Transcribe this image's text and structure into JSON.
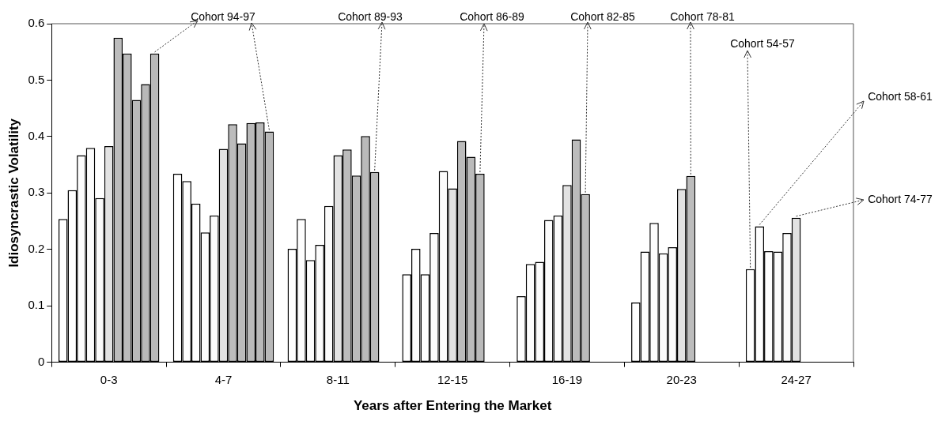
{
  "chart_data": {
    "type": "bar",
    "xlabel": "Years after Entering the Market",
    "ylabel": "Idiosyncrastic Volatility",
    "categories": [
      "0-3",
      "4-7",
      "8-11",
      "12-15",
      "16-19",
      "20-23",
      "24-27"
    ],
    "ylim": [
      0,
      0.6
    ],
    "yticks": [
      0,
      0.1,
      0.2,
      0.3,
      0.4,
      0.5,
      0.6
    ],
    "grid": false,
    "legend": false,
    "series": [
      {
        "name": "Cohort 54-57",
        "color": "#ffffff",
        "values": [
          0.254,
          0.334,
          0.201,
          0.156,
          0.117,
          0.106,
          0.165
        ]
      },
      {
        "name": "Cohort 58-61",
        "color": "#fefefe",
        "values": [
          0.305,
          0.321,
          0.254,
          0.201,
          0.174,
          0.196,
          0.241
        ]
      },
      {
        "color": "#fdfdfd",
        "values": [
          0.367,
          0.281,
          0.181,
          0.156,
          0.178,
          0.247,
          0.197
        ]
      },
      {
        "color": "#fcfcfc",
        "values": [
          0.38,
          0.23,
          0.208,
          0.229,
          0.252,
          0.193,
          0.196
        ]
      },
      {
        "color": "#fbfbfb",
        "values": [
          0.291,
          0.26,
          0.277,
          0.339,
          0.26,
          0.204,
          0.229
        ]
      },
      {
        "name": "Cohort 74-77",
        "color": "#e2e2e2",
        "values": [
          0.383,
          0.378,
          0.367,
          0.308,
          0.314,
          0.307,
          0.256
        ]
      },
      {
        "name": "Cohort 78-81",
        "color": "#bcbcbc",
        "values": [
          0.575,
          0.422,
          0.377,
          0.392,
          0.395,
          0.33,
          null
        ]
      },
      {
        "name": "Cohort 82-85",
        "color": "#bbbbbb",
        "values": [
          0.547,
          0.388,
          0.331,
          0.364,
          0.298,
          null,
          null
        ]
      },
      {
        "name": "Cohort 86-89",
        "color": "#bababa",
        "values": [
          0.465,
          0.424,
          0.401,
          0.334,
          null,
          null,
          null
        ]
      },
      {
        "name": "Cohort 89-93",
        "color": "#b9b9b9",
        "values": [
          0.493,
          0.425,
          0.337,
          null,
          null,
          null,
          null
        ]
      },
      {
        "name": "Cohort 94-97",
        "color": "#b8b8b8",
        "values": [
          0.547,
          0.409,
          null,
          null,
          null,
          null,
          null
        ]
      }
    ]
  }
}
